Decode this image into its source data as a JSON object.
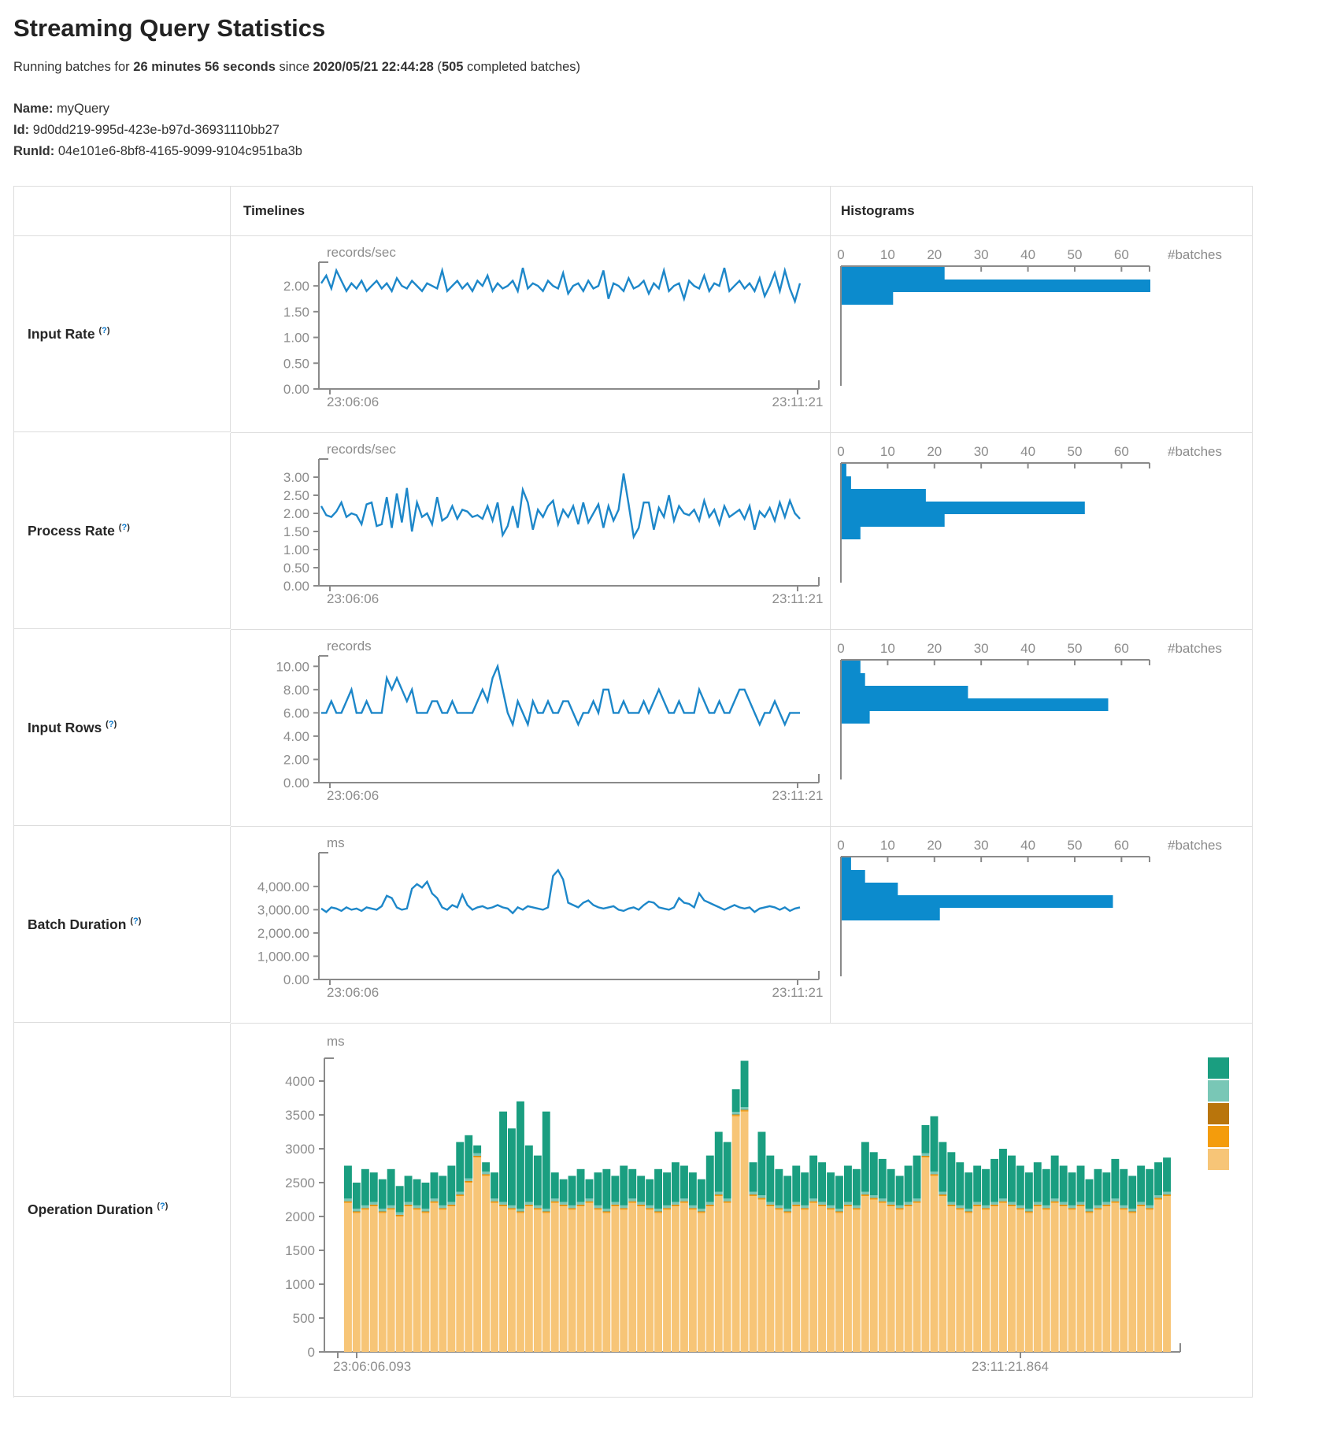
{
  "page": {
    "title": "Streaming Query Statistics",
    "subtitle": {
      "prefix": "Running batches for ",
      "duration": "26 minutes 56 seconds",
      "mid": " since ",
      "start_time": "2020/05/21 22:44:28",
      "open": " (",
      "batches": "505",
      "suffix": " completed batches)"
    },
    "name_label": "Name:",
    "name_value": "myQuery",
    "id_label": "Id:",
    "id_value": "9d0dd219-995d-423e-b97d-36931110bb27",
    "runid_label": "RunId:",
    "runid_value": "04e101e6-8bf8-4165-9099-9104c951ba3b"
  },
  "table": {
    "col_timelines": "Timelines",
    "col_histograms": "Histograms"
  },
  "help": {
    "open": "(",
    "q": "?",
    "close": ")"
  },
  "rows": [
    {
      "label": "Input Rate"
    },
    {
      "label": "Process Rate"
    },
    {
      "label": "Input Rows"
    },
    {
      "label": "Batch Duration"
    },
    {
      "label": "Operation Duration"
    }
  ],
  "colors": {
    "line_blue": "#1d87c9",
    "bar_blue": "#0c8bcd",
    "axis_gray": "#8c8c8c",
    "border_gray": "#dddddd",
    "teal": "#1a9e80",
    "light_teal": "#79c7b6",
    "dark_orange": "#b9750c",
    "orange": "#f49c0c",
    "tan": "#f7c577",
    "help_blue": "#0b78cb"
  },
  "chart_data": [
    {
      "row": "Input Rate",
      "type": "line",
      "unit": "records/sec",
      "x_start_label": "23:06:06",
      "x_end_label": "23:11:21",
      "y_ticks": [
        0,
        0.5,
        1,
        1.5,
        2
      ],
      "y_fmt": "2dp",
      "y_max": 2.46,
      "values": [
        2.05,
        2.2,
        1.95,
        2.3,
        2.1,
        1.9,
        2.05,
        1.95,
        2.1,
        1.9,
        2.0,
        2.1,
        1.95,
        2.05,
        1.9,
        2.15,
        2.0,
        1.95,
        2.1,
        2.0,
        1.9,
        2.05,
        2.0,
        1.95,
        2.3,
        1.9,
        2.0,
        2.1,
        1.95,
        2.05,
        1.9,
        2.1,
        2.0,
        2.2,
        1.9,
        2.05,
        1.95,
        2.0,
        2.1,
        1.9,
        2.35,
        1.95,
        2.05,
        2.0,
        1.9,
        2.1,
        2.0,
        1.95,
        2.25,
        1.85,
        2.0,
        2.05,
        1.9,
        2.1,
        1.95,
        2.0,
        2.3,
        1.75,
        2.05,
        2.0,
        1.9,
        2.15,
        1.95,
        2.0,
        2.1,
        1.85,
        2.05,
        1.95,
        2.3,
        1.9,
        2.0,
        2.05,
        1.75,
        2.1,
        2.0,
        1.95,
        2.2,
        1.9,
        2.05,
        2.0,
        2.35,
        1.9,
        2.0,
        2.1,
        1.95,
        2.05,
        1.9,
        2.15,
        1.8,
        2.0,
        2.25,
        1.9,
        2.3,
        1.95,
        1.7,
        2.05
      ],
      "histogram": {
        "unit_label": "#batches",
        "ticks": [
          0,
          10,
          20,
          30,
          40,
          50,
          60
        ],
        "axis_max": 66,
        "bins": [
          22,
          66,
          11
        ]
      }
    },
    {
      "row": "Process Rate",
      "type": "line",
      "unit": "records/sec",
      "x_start_label": "23:06:06",
      "x_end_label": "23:11:21",
      "y_ticks": [
        0,
        0.5,
        1,
        1.5,
        2,
        2.5,
        3
      ],
      "y_fmt": "2dp",
      "y_max": 3.5,
      "values": [
        2.2,
        1.95,
        1.9,
        2.05,
        2.3,
        1.9,
        2.0,
        1.95,
        1.7,
        2.25,
        2.3,
        1.65,
        1.7,
        2.45,
        1.6,
        2.55,
        1.75,
        2.7,
        1.5,
        2.3,
        1.9,
        2.0,
        1.7,
        2.45,
        1.8,
        1.9,
        2.2,
        1.85,
        2.1,
        2.05,
        1.9,
        1.95,
        1.85,
        2.2,
        1.8,
        2.3,
        1.4,
        1.65,
        2.2,
        1.6,
        2.65,
        2.3,
        1.55,
        2.1,
        1.9,
        2.2,
        2.35,
        1.7,
        2.1,
        1.9,
        2.2,
        1.7,
        2.3,
        1.75,
        2.0,
        2.25,
        1.6,
        2.2,
        1.8,
        2.1,
        3.1,
        2.25,
        1.35,
        1.6,
        2.3,
        2.3,
        1.55,
        2.15,
        1.9,
        2.5,
        1.8,
        2.2,
        2.0,
        1.95,
        2.1,
        1.8,
        2.35,
        1.9,
        2.1,
        1.7,
        2.2,
        1.9,
        2.0,
        2.1,
        1.85,
        2.2,
        1.55,
        2.05,
        1.9,
        2.15,
        1.8,
        2.3,
        1.9,
        2.35,
        2.0,
        1.85
      ],
      "histogram": {
        "unit_label": "#batches",
        "ticks": [
          0,
          10,
          20,
          30,
          40,
          50,
          60
        ],
        "axis_max": 66,
        "bins": [
          1,
          2,
          18,
          52,
          22,
          4
        ]
      }
    },
    {
      "row": "Input Rows",
      "type": "line",
      "unit": "records",
      "x_start_label": "23:06:06",
      "x_end_label": "23:11:21",
      "y_ticks": [
        0,
        2,
        4,
        6,
        8,
        10
      ],
      "y_fmt": "2dp",
      "y_max": 10.9,
      "values": [
        6,
        6,
        7,
        6,
        6,
        7,
        8,
        6,
        6,
        7,
        6,
        6,
        6,
        9,
        8,
        9,
        8,
        7,
        8,
        6,
        6,
        6,
        7,
        7,
        6,
        6,
        7,
        6,
        6,
        6,
        6,
        7,
        8,
        7,
        9,
        10,
        8,
        6,
        5,
        7,
        6,
        5,
        7,
        6,
        6,
        7,
        6,
        6,
        7,
        7,
        6,
        5,
        6,
        6,
        7,
        6,
        8,
        8,
        6,
        6,
        7,
        6,
        6,
        6,
        7,
        6,
        7,
        8,
        7,
        6,
        6,
        7,
        6,
        6,
        6,
        8,
        7,
        6,
        6,
        7,
        6,
        6,
        7,
        8,
        8,
        7,
        6,
        5,
        6,
        6,
        7,
        6,
        5,
        6,
        6,
        6
      ],
      "histogram": {
        "unit_label": "#batches",
        "ticks": [
          0,
          10,
          20,
          30,
          40,
          50,
          60
        ],
        "axis_max": 66,
        "bins": [
          4,
          5,
          27,
          57,
          6
        ]
      }
    },
    {
      "row": "Batch Duration",
      "type": "line",
      "unit": "ms",
      "x_start_label": "23:06:06",
      "x_end_label": "23:11:21",
      "y_ticks": [
        0,
        1000,
        2000,
        3000,
        4000
      ],
      "y_fmt": "comma2dp",
      "y_max": 5450,
      "values": [
        3050,
        2900,
        3100,
        3050,
        2950,
        3100,
        3000,
        3050,
        2950,
        3100,
        3050,
        3000,
        3150,
        3600,
        3500,
        3100,
        3000,
        3050,
        3900,
        4100,
        3950,
        4200,
        3700,
        3500,
        3100,
        3000,
        3200,
        3100,
        3650,
        3200,
        3000,
        3100,
        3150,
        3050,
        3100,
        3200,
        3100,
        3050,
        2850,
        3100,
        3000,
        3150,
        3100,
        3050,
        3000,
        3100,
        4450,
        4700,
        4300,
        3300,
        3200,
        3100,
        3300,
        3400,
        3200,
        3100,
        3050,
        3100,
        3150,
        3000,
        2950,
        3050,
        3100,
        3000,
        3200,
        3350,
        3300,
        3100,
        3050,
        3000,
        3100,
        3500,
        3300,
        3250,
        3100,
        3700,
        3400,
        3300,
        3200,
        3100,
        3000,
        3100,
        3200,
        3100,
        3050,
        3100,
        2900,
        3050,
        3100,
        3150,
        3100,
        3000,
        3100,
        2950,
        3050,
        3100
      ],
      "histogram": {
        "unit_label": "#batches",
        "ticks": [
          0,
          10,
          20,
          30,
          40,
          50,
          60
        ],
        "axis_max": 66,
        "bins": [
          2,
          5,
          12,
          58,
          21
        ]
      }
    },
    {
      "row": "Operation Duration",
      "type": "stacked-bar",
      "unit": "ms",
      "x_start_label": "23:06:06.093",
      "x_end_label": "23:11:21.864",
      "y_ticks": [
        0,
        500,
        1000,
        1500,
        2000,
        2500,
        3000,
        3500,
        4000
      ],
      "y_fmt": "int",
      "y_max": 4337,
      "stack_order_bottom_up": [
        "tan",
        "orange",
        "dark_orange",
        "light_teal",
        "teal"
      ],
      "sliver_ms": {
        "orange": 18,
        "dark_orange": 8,
        "light_teal": 38
      },
      "base_values": [
        2200,
        2050,
        2100,
        2150,
        2050,
        2100,
        2000,
        2150,
        2100,
        2050,
        2200,
        2100,
        2150,
        2300,
        2500,
        2870,
        2600,
        2200,
        2150,
        2100,
        2050,
        2150,
        2100,
        2050,
        2200,
        2150,
        2100,
        2150,
        2200,
        2100,
        2050,
        2150,
        2100,
        2200,
        2150,
        2100,
        2050,
        2100,
        2150,
        2200,
        2100,
        2050,
        2150,
        2300,
        2200,
        3480,
        3550,
        2300,
        2250,
        2150,
        2100,
        2050,
        2150,
        2100,
        2200,
        2150,
        2100,
        2050,
        2150,
        2100,
        2300,
        2250,
        2200,
        2150,
        2100,
        2150,
        2200,
        2870,
        2600,
        2300,
        2150,
        2100,
        2050,
        2150,
        2100,
        2150,
        2200,
        2150,
        2100,
        2050,
        2150,
        2100,
        2200,
        2150,
        2100,
        2150,
        2050,
        2100,
        2150,
        2200,
        2100,
        2050,
        2150,
        2100,
        2250,
        2300
      ],
      "total_values": [
        2750,
        2500,
        2700,
        2650,
        2550,
        2700,
        2450,
        2600,
        2550,
        2500,
        2650,
        2600,
        2750,
        3100,
        3200,
        3050,
        2800,
        2650,
        3550,
        3300,
        3700,
        3050,
        2900,
        3550,
        2650,
        2550,
        2600,
        2700,
        2550,
        2650,
        2700,
        2600,
        2750,
        2700,
        2600,
        2550,
        2700,
        2650,
        2800,
        2750,
        2650,
        2550,
        2900,
        3250,
        3100,
        3880,
        4300,
        2800,
        3250,
        2900,
        2700,
        2600,
        2750,
        2650,
        2900,
        2800,
        2650,
        2600,
        2750,
        2700,
        3100,
        2950,
        2850,
        2700,
        2600,
        2750,
        2900,
        3350,
        3480,
        3100,
        2950,
        2800,
        2650,
        2750,
        2700,
        2850,
        3000,
        2900,
        2750,
        2650,
        2800,
        2700,
        2900,
        2750,
        2650,
        2750,
        2550,
        2700,
        2650,
        2850,
        2700,
        2600,
        2750,
        2700,
        2800,
        2870
      ],
      "legend_colors": [
        "#1a9e80",
        "#79c7b6",
        "#b9750c",
        "#f49c0c",
        "#f7c577"
      ]
    }
  ]
}
